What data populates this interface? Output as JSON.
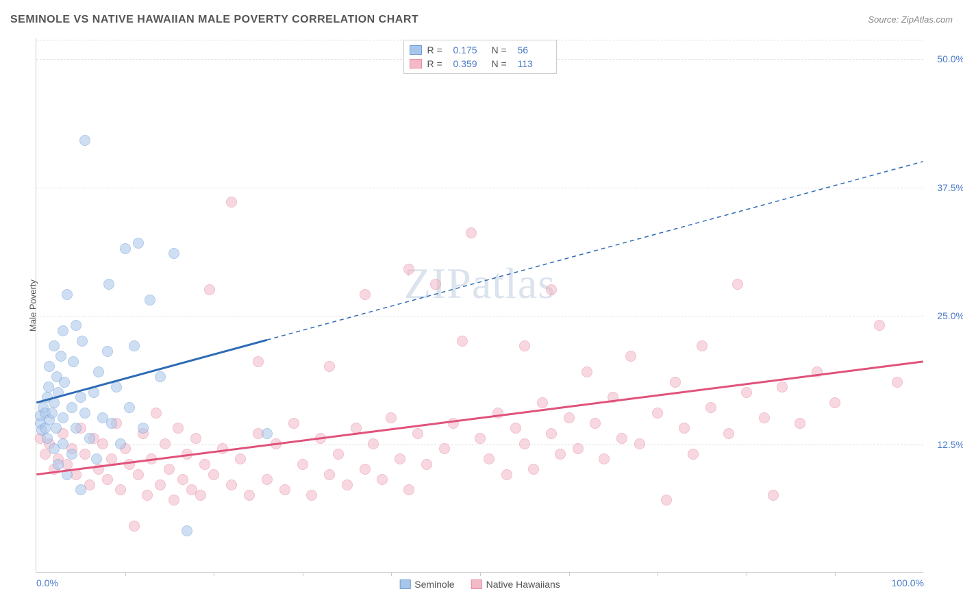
{
  "header": {
    "title": "SEMINOLE VS NATIVE HAWAIIAN MALE POVERTY CORRELATION CHART",
    "source": "Source: ZipAtlas.com"
  },
  "watermark": "ZIPatlas",
  "chart": {
    "type": "scatter",
    "ylabel": "Male Poverty",
    "xlim": [
      0,
      100
    ],
    "ylim": [
      0,
      52
    ],
    "background_color": "#ffffff",
    "grid_color": "#dddddd",
    "axis_color": "#cccccc",
    "tick_label_color": "#4a7ac7",
    "marker_radius": 8,
    "marker_stroke_width": 1.5,
    "yticks": [
      {
        "v": 12.5,
        "label": "12.5%"
      },
      {
        "v": 25.0,
        "label": "25.0%"
      },
      {
        "v": 37.5,
        "label": "37.5%"
      },
      {
        "v": 50.0,
        "label": "50.0%"
      }
    ],
    "xticks_minor": [
      10,
      20,
      30,
      40,
      50,
      60,
      70,
      80,
      90
    ],
    "xtick_labels": [
      {
        "v": 0,
        "label": "0.0%"
      },
      {
        "v": 100,
        "label": "100.0%"
      }
    ],
    "series": [
      {
        "name": "Seminole",
        "fill": "#a9c6ea",
        "stroke": "#6f9fd8",
        "fill_opacity": 0.55,
        "trend_color": "#2e6bb5",
        "trend_width": 3,
        "trend_solid_to_x": 26,
        "trend": {
          "x1": 0,
          "y1": 16.5,
          "x2": 100,
          "y2": 40.0
        },
        "R": "0.175",
        "N": "56",
        "points": [
          [
            0.5,
            14.5
          ],
          [
            0.5,
            15.2
          ],
          [
            0.6,
            13.8
          ],
          [
            0.8,
            16.0
          ],
          [
            1.0,
            14.0
          ],
          [
            1.0,
            15.5
          ],
          [
            1.2,
            13.0
          ],
          [
            1.2,
            17.0
          ],
          [
            1.4,
            18.0
          ],
          [
            1.5,
            14.8
          ],
          [
            1.5,
            20.0
          ],
          [
            1.8,
            15.5
          ],
          [
            2.0,
            12.0
          ],
          [
            2.0,
            16.5
          ],
          [
            2.0,
            22.0
          ],
          [
            2.2,
            14.0
          ],
          [
            2.3,
            19.0
          ],
          [
            2.5,
            10.5
          ],
          [
            2.5,
            17.5
          ],
          [
            2.8,
            21.0
          ],
          [
            3.0,
            12.5
          ],
          [
            3.0,
            15.0
          ],
          [
            3.0,
            23.5
          ],
          [
            3.2,
            18.5
          ],
          [
            3.5,
            9.5
          ],
          [
            3.5,
            27.0
          ],
          [
            4.0,
            11.5
          ],
          [
            4.0,
            16.0
          ],
          [
            4.2,
            20.5
          ],
          [
            4.5,
            14.0
          ],
          [
            4.5,
            24.0
          ],
          [
            5.0,
            8.0
          ],
          [
            5.0,
            17.0
          ],
          [
            5.2,
            22.5
          ],
          [
            5.5,
            15.5
          ],
          [
            5.5,
            42.0
          ],
          [
            6.0,
            13.0
          ],
          [
            6.5,
            17.5
          ],
          [
            6.8,
            11.0
          ],
          [
            7.0,
            19.5
          ],
          [
            7.5,
            15.0
          ],
          [
            8.0,
            21.5
          ],
          [
            8.2,
            28.0
          ],
          [
            8.5,
            14.5
          ],
          [
            9.0,
            18.0
          ],
          [
            9.5,
            12.5
          ],
          [
            10.0,
            31.5
          ],
          [
            10.5,
            16.0
          ],
          [
            11.0,
            22.0
          ],
          [
            11.5,
            32.0
          ],
          [
            12.0,
            14.0
          ],
          [
            12.8,
            26.5
          ],
          [
            14.0,
            19.0
          ],
          [
            15.5,
            31.0
          ],
          [
            17.0,
            4.0
          ],
          [
            26.0,
            13.5
          ]
        ]
      },
      {
        "name": "Native Hawaiians",
        "fill": "#f4b9c7",
        "stroke": "#e88aa2",
        "fill_opacity": 0.55,
        "trend_color": "#e0527a",
        "trend_width": 3,
        "trend_solid_to_x": 100,
        "trend": {
          "x1": 0,
          "y1": 9.5,
          "x2": 100,
          "y2": 20.5
        },
        "R": "0.359",
        "N": "113",
        "points": [
          [
            0.5,
            13.0
          ],
          [
            1.0,
            11.5
          ],
          [
            1.5,
            12.5
          ],
          [
            2.0,
            10.0
          ],
          [
            2.5,
            11.0
          ],
          [
            3.0,
            13.5
          ],
          [
            3.5,
            10.5
          ],
          [
            4.0,
            12.0
          ],
          [
            4.5,
            9.5
          ],
          [
            5.0,
            14.0
          ],
          [
            5.5,
            11.5
          ],
          [
            6.0,
            8.5
          ],
          [
            6.5,
            13.0
          ],
          [
            7.0,
            10.0
          ],
          [
            7.5,
            12.5
          ],
          [
            8.0,
            9.0
          ],
          [
            8.5,
            11.0
          ],
          [
            9.0,
            14.5
          ],
          [
            9.5,
            8.0
          ],
          [
            10.0,
            12.0
          ],
          [
            10.5,
            10.5
          ],
          [
            11.0,
            4.5
          ],
          [
            11.5,
            9.5
          ],
          [
            12.0,
            13.5
          ],
          [
            12.5,
            7.5
          ],
          [
            13.0,
            11.0
          ],
          [
            13.5,
            15.5
          ],
          [
            14.0,
            8.5
          ],
          [
            14.5,
            12.5
          ],
          [
            15.0,
            10.0
          ],
          [
            15.5,
            7.0
          ],
          [
            16.0,
            14.0
          ],
          [
            16.5,
            9.0
          ],
          [
            17.0,
            11.5
          ],
          [
            17.5,
            8.0
          ],
          [
            18.0,
            13.0
          ],
          [
            18.5,
            7.5
          ],
          [
            19.0,
            10.5
          ],
          [
            19.5,
            27.5
          ],
          [
            20.0,
            9.5
          ],
          [
            21.0,
            12.0
          ],
          [
            22.0,
            8.5
          ],
          [
            22.0,
            36.0
          ],
          [
            23.0,
            11.0
          ],
          [
            24.0,
            7.5
          ],
          [
            25.0,
            13.5
          ],
          [
            25.0,
            20.5
          ],
          [
            26.0,
            9.0
          ],
          [
            27.0,
            12.5
          ],
          [
            28.0,
            8.0
          ],
          [
            29.0,
            14.5
          ],
          [
            30.0,
            10.5
          ],
          [
            31.0,
            7.5
          ],
          [
            32.0,
            13.0
          ],
          [
            33.0,
            9.5
          ],
          [
            33.0,
            20.0
          ],
          [
            34.0,
            11.5
          ],
          [
            35.0,
            8.5
          ],
          [
            36.0,
            14.0
          ],
          [
            37.0,
            10.0
          ],
          [
            37.0,
            27.0
          ],
          [
            38.0,
            12.5
          ],
          [
            39.0,
            9.0
          ],
          [
            40.0,
            15.0
          ],
          [
            41.0,
            11.0
          ],
          [
            42.0,
            8.0
          ],
          [
            42.0,
            29.5
          ],
          [
            43.0,
            13.5
          ],
          [
            44.0,
            10.5
          ],
          [
            45.0,
            28.0
          ],
          [
            46.0,
            12.0
          ],
          [
            47.0,
            14.5
          ],
          [
            48.0,
            22.5
          ],
          [
            49.0,
            33.0
          ],
          [
            50.0,
            13.0
          ],
          [
            51.0,
            11.0
          ],
          [
            52.0,
            15.5
          ],
          [
            53.0,
            9.5
          ],
          [
            54.0,
            14.0
          ],
          [
            55.0,
            12.5
          ],
          [
            55.0,
            22.0
          ],
          [
            56.0,
            10.0
          ],
          [
            57.0,
            16.5
          ],
          [
            58.0,
            13.5
          ],
          [
            58.0,
            27.5
          ],
          [
            59.0,
            11.5
          ],
          [
            60.0,
            15.0
          ],
          [
            61.0,
            12.0
          ],
          [
            62.0,
            19.5
          ],
          [
            63.0,
            14.5
          ],
          [
            64.0,
            11.0
          ],
          [
            65.0,
            17.0
          ],
          [
            66.0,
            13.0
          ],
          [
            67.0,
            21.0
          ],
          [
            68.0,
            12.5
          ],
          [
            70.0,
            15.5
          ],
          [
            71.0,
            7.0
          ],
          [
            72.0,
            18.5
          ],
          [
            73.0,
            14.0
          ],
          [
            74.0,
            11.5
          ],
          [
            75.0,
            22.0
          ],
          [
            76.0,
            16.0
          ],
          [
            78.0,
            13.5
          ],
          [
            79.0,
            28.0
          ],
          [
            80.0,
            17.5
          ],
          [
            82.0,
            15.0
          ],
          [
            83.0,
            7.5
          ],
          [
            84.0,
            18.0
          ],
          [
            86.0,
            14.5
          ],
          [
            88.0,
            19.5
          ],
          [
            90.0,
            16.5
          ],
          [
            95.0,
            24.0
          ],
          [
            97.0,
            18.5
          ]
        ]
      }
    ],
    "legend_bottom": [
      {
        "label": "Seminole",
        "fill": "#a9c6ea",
        "stroke": "#6f9fd8"
      },
      {
        "label": "Native Hawaiians",
        "fill": "#f4b9c7",
        "stroke": "#e88aa2"
      }
    ]
  }
}
